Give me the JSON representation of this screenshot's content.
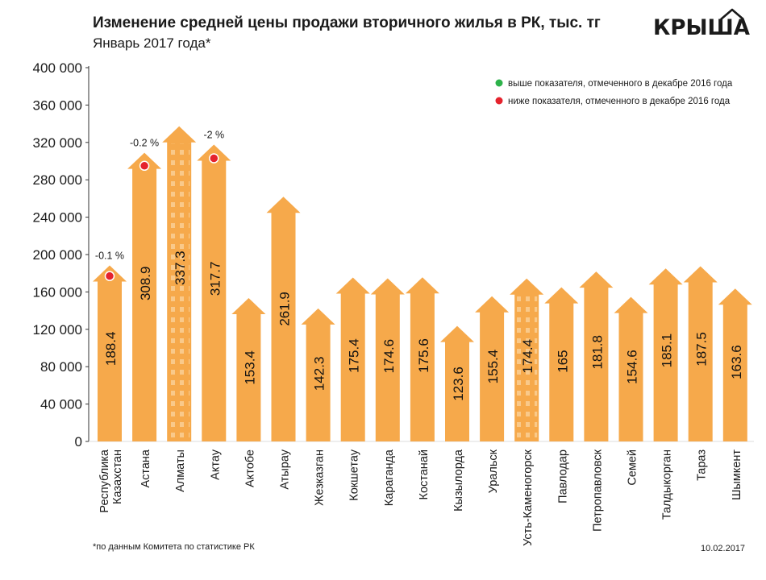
{
  "header": {
    "title": "Изменение средней цены продажи вторичного жилья в РК, тыс. тг",
    "subtitle": "Январь 2017 года*"
  },
  "logo": {
    "text": "КРЫША",
    "icon": "roof-logo-icon"
  },
  "footer": {
    "footnote": "*по данным Комитета по статистике РК",
    "date": "10.02.2017"
  },
  "colors": {
    "bar": "#f6a94b",
    "bar_pattern": "#f9c98a",
    "marker_up": "#2db24a",
    "marker_down": "#e5232d",
    "axis": "#333333"
  },
  "chart_data": {
    "type": "bar",
    "categories": [
      "Республика Казахстан",
      "Астана",
      "Алматы",
      "Актау",
      "Актобе",
      "Атырау",
      "Жезказган",
      "Кокшетау",
      "Караганда",
      "Костанай",
      "Кызылорда",
      "Уральск",
      "Усть-Каменогорск",
      "Павлодар",
      "Петропавловск",
      "Семей",
      "Талдыкорган",
      "Тараз",
      "Шымкент"
    ],
    "category_lines": [
      [
        "Республика",
        "Казахстан"
      ],
      [
        "Астана"
      ],
      [
        "Алматы"
      ],
      [
        "Актау"
      ],
      [
        "Актобе"
      ],
      [
        "Атырау"
      ],
      [
        "Жезказган"
      ],
      [
        "Кокшетау"
      ],
      [
        "Караганда"
      ],
      [
        "Костанай"
      ],
      [
        "Кызылорда"
      ],
      [
        "Уральск"
      ],
      [
        "Усть-Каменогорск"
      ],
      [
        "Павлодар"
      ],
      [
        "Петропавловск"
      ],
      [
        "Семей"
      ],
      [
        "Талдыкорган"
      ],
      [
        "Тараз"
      ],
      [
        "Шымкент"
      ]
    ],
    "values": [
      188.4,
      308.9,
      337.3,
      317.7,
      153.4,
      261.9,
      142.3,
      175.4,
      174.6,
      175.6,
      123.6,
      155.4,
      174.4,
      165,
      181.8,
      154.6,
      185.1,
      187.5,
      163.6
    ],
    "value_labels": [
      "188.4",
      "308.9",
      "337.3",
      "317.7",
      "153.4",
      "261.9",
      "142.3",
      "175.4",
      "174.6",
      "175.6",
      "123.6",
      "155.4",
      "174.4",
      "165",
      "181.8",
      "154.6",
      "185.1",
      "187.5",
      "163.6"
    ],
    "patterned_categories": [
      "Алматы",
      "Усть-Каменогорск"
    ],
    "yticks": [
      0,
      40000,
      80000,
      120000,
      160000,
      200000,
      240000,
      280000,
      320000,
      360000,
      400000
    ],
    "ytick_labels": [
      "0",
      "40 000",
      "80 000",
      "120 000",
      "160 000",
      "200 000",
      "240 000",
      "280 000",
      "320 000",
      "360 000",
      "400 000"
    ],
    "ylim": [
      0,
      400000
    ],
    "value_scale": 1000,
    "grid": false,
    "legend": {
      "position": "top-right",
      "entries": [
        {
          "label": "выше показателя, отмеченного в декабре 2016 года",
          "color": "#2db24a"
        },
        {
          "label": "ниже показателя, отмеченного в декабре 2016 года",
          "color": "#e5232d"
        }
      ]
    },
    "markers": [
      {
        "category": "Республика Казахстан",
        "type": "below",
        "change": "-0.1 %",
        "y_value": 177000
      },
      {
        "category": "Астана",
        "type": "below",
        "change": "-0.2 %",
        "y_value": 295000
      },
      {
        "category": "Актау",
        "type": "below",
        "change": "-2 %",
        "y_value": 303000
      }
    ]
  }
}
